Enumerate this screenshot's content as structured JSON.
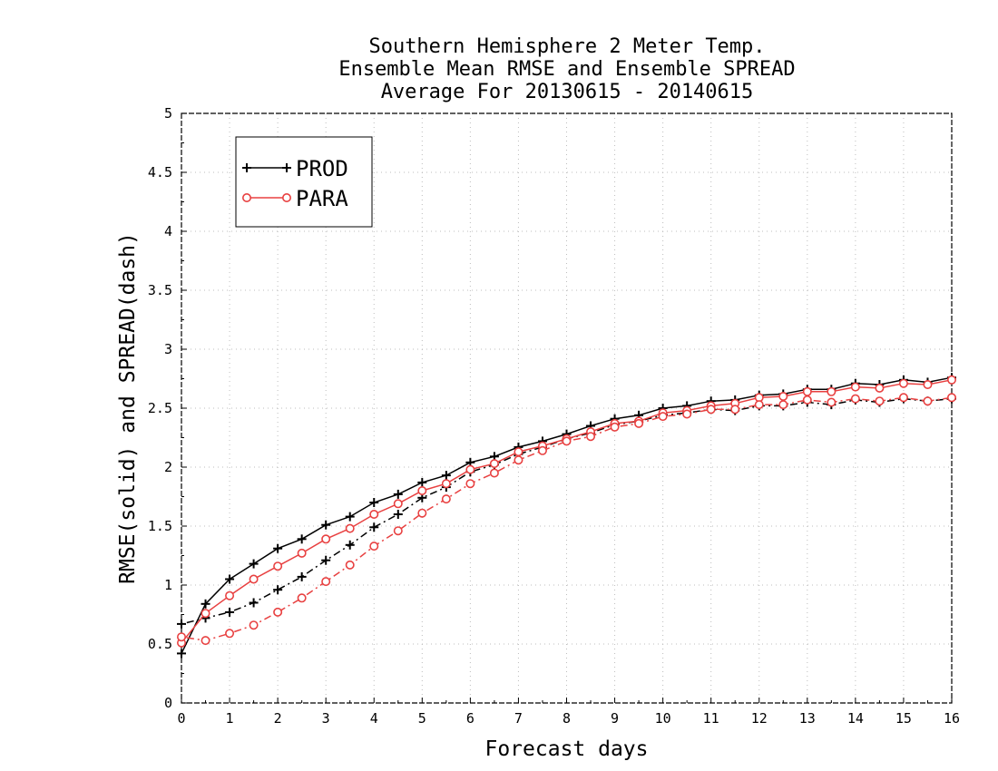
{
  "chart_data": {
    "type": "line",
    "title_lines": [
      "Southern Hemisphere 2 Meter Temp.",
      "Ensemble Mean RMSE and Ensemble SPREAD",
      "Average For 20130615 - 20140615"
    ],
    "xlabel": "Forecast days",
    "ylabel": "RMSE(solid) and SPREAD(dash)",
    "xlim": [
      0,
      16
    ],
    "ylim": [
      0,
      5
    ],
    "x_ticks": [
      0,
      1,
      2,
      3,
      4,
      5,
      6,
      7,
      8,
      9,
      10,
      11,
      12,
      13,
      14,
      15,
      16
    ],
    "y_ticks": [
      0,
      0.5,
      1,
      1.5,
      2,
      2.5,
      3,
      3.5,
      4,
      4.5,
      5
    ],
    "grid": true,
    "legend_position": "top-left",
    "x": [
      0,
      0.5,
      1,
      1.5,
      2,
      2.5,
      3,
      3.5,
      4,
      4.5,
      5,
      5.5,
      6,
      6.5,
      7,
      7.5,
      8,
      8.5,
      9,
      9.5,
      10,
      10.5,
      11,
      11.5,
      12,
      12.5,
      13,
      13.5,
      14,
      14.5,
      15,
      15.5,
      16
    ],
    "series": [
      {
        "name": "PROD",
        "metric": "RMSE",
        "style": "solid",
        "marker": "plus",
        "color": "#000000",
        "values": [
          0.42,
          0.84,
          1.05,
          1.18,
          1.31,
          1.39,
          1.51,
          1.58,
          1.7,
          1.77,
          1.87,
          1.93,
          2.04,
          2.09,
          2.17,
          2.22,
          2.28,
          2.35,
          2.41,
          2.44,
          2.5,
          2.52,
          2.56,
          2.57,
          2.61,
          2.62,
          2.66,
          2.66,
          2.71,
          2.7,
          2.74,
          2.72,
          2.76
        ]
      },
      {
        "name": "PROD",
        "metric": "SPREAD",
        "style": "dash",
        "marker": "plus",
        "color": "#000000",
        "values": [
          0.67,
          0.72,
          0.77,
          0.85,
          0.96,
          1.07,
          1.21,
          1.34,
          1.49,
          1.6,
          1.74,
          1.83,
          1.96,
          2.02,
          2.11,
          2.17,
          2.24,
          2.29,
          2.36,
          2.39,
          2.44,
          2.46,
          2.49,
          2.48,
          2.52,
          2.52,
          2.55,
          2.53,
          2.57,
          2.55,
          2.58,
          2.56,
          2.58
        ]
      },
      {
        "name": "PARA",
        "metric": "RMSE",
        "style": "solid",
        "marker": "circle",
        "color": "#e84040",
        "values": [
          0.51,
          0.76,
          0.91,
          1.05,
          1.16,
          1.27,
          1.39,
          1.48,
          1.6,
          1.69,
          1.8,
          1.86,
          1.98,
          2.03,
          2.13,
          2.18,
          2.24,
          2.3,
          2.37,
          2.39,
          2.46,
          2.48,
          2.52,
          2.54,
          2.59,
          2.6,
          2.64,
          2.64,
          2.68,
          2.67,
          2.71,
          2.7,
          2.74
        ]
      },
      {
        "name": "PARA",
        "metric": "SPREAD",
        "style": "dash",
        "marker": "circle",
        "color": "#e84040",
        "values": [
          0.56,
          0.53,
          0.59,
          0.66,
          0.77,
          0.89,
          1.03,
          1.17,
          1.33,
          1.46,
          1.61,
          1.73,
          1.86,
          1.95,
          2.06,
          2.14,
          2.22,
          2.26,
          2.34,
          2.37,
          2.43,
          2.45,
          2.49,
          2.49,
          2.53,
          2.53,
          2.57,
          2.55,
          2.58,
          2.56,
          2.59,
          2.56,
          2.59
        ]
      }
    ],
    "legend": [
      {
        "label": "PROD",
        "color": "#000000",
        "marker": "plus"
      },
      {
        "label": "PARA",
        "color": "#e84040",
        "marker": "circle"
      }
    ]
  }
}
